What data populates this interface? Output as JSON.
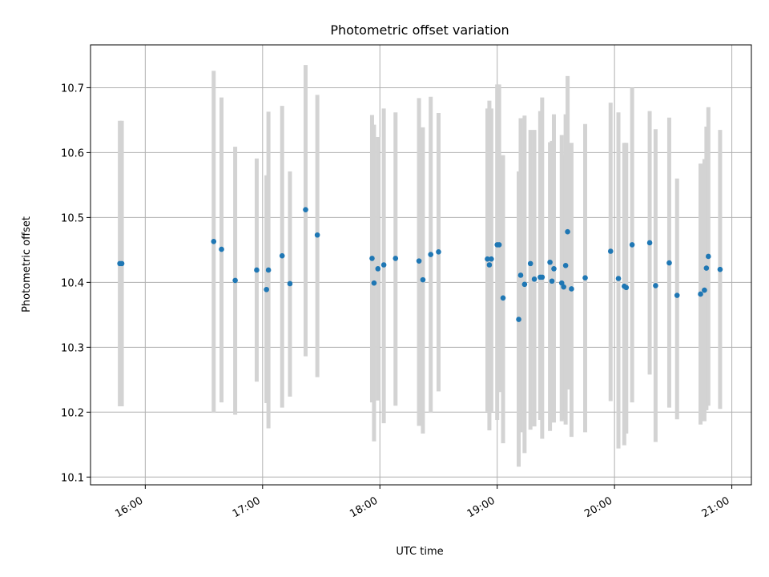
{
  "chart_data": {
    "type": "scatter",
    "title": "Photometric offset variation",
    "xlabel": "UTC time",
    "ylabel": "Photometric offset",
    "grid": true,
    "xlim": [
      "15:32",
      "21:10"
    ],
    "ylim": [
      10.088,
      10.766
    ],
    "x_ticks": [
      "16:00",
      "17:00",
      "18:00",
      "19:00",
      "20:00",
      "21:00"
    ],
    "y_ticks": [
      "10.1",
      "10.2",
      "10.3",
      "10.4",
      "10.5",
      "10.6",
      "10.7"
    ],
    "point_color": "#1f77b4",
    "errorbar_color": "#d3d3d3",
    "series": [
      {
        "x": [
          "15:47",
          "15:48",
          "16:35",
          "16:39",
          "16:46",
          "16:57",
          "17:02",
          "17:03",
          "17:10",
          "17:14",
          "17:22",
          "17:28",
          "17:56",
          "17:57",
          "17:59",
          "18:02",
          "18:08",
          "18:20",
          "18:22",
          "18:26",
          "18:30",
          "18:55",
          "18:56",
          "18:57",
          "19:00",
          "19:01",
          "19:03",
          "19:11",
          "19:12",
          "19:14",
          "19:17",
          "19:19",
          "19:22",
          "19:23",
          "19:27",
          "19:28",
          "19:29",
          "19:33",
          "19:34",
          "19:35",
          "19:36",
          "19:38",
          "19:45",
          "19:58",
          "20:02",
          "20:05",
          "20:06",
          "20:09",
          "20:18",
          "20:21",
          "20:28",
          "20:32",
          "20:44",
          "20:46",
          "20:47",
          "20:48",
          "20:54"
        ],
        "y": [
          10.429,
          10.429,
          10.463,
          10.451,
          10.403,
          10.419,
          10.389,
          10.419,
          10.441,
          10.398,
          10.512,
          10.473,
          10.437,
          10.399,
          10.421,
          10.427,
          10.437,
          10.433,
          10.404,
          10.443,
          10.447,
          10.436,
          10.427,
          10.436,
          10.458,
          10.458,
          10.376,
          10.343,
          10.411,
          10.397,
          10.429,
          10.405,
          10.408,
          10.408,
          10.431,
          10.402,
          10.421,
          10.399,
          10.393,
          10.426,
          10.478,
          10.39,
          10.407,
          10.448,
          10.406,
          10.394,
          10.392,
          10.458,
          10.461,
          10.395,
          10.43,
          10.38,
          10.382,
          10.388,
          10.422,
          10.44,
          10.42
        ],
        "err_low": [
          10.209,
          10.209,
          10.199,
          10.215,
          10.196,
          10.247,
          10.214,
          10.175,
          10.207,
          10.224,
          10.286,
          10.254,
          10.215,
          10.155,
          10.218,
          10.183,
          10.21,
          10.179,
          10.167,
          10.199,
          10.232,
          10.201,
          10.172,
          10.201,
          10.188,
          10.231,
          10.152,
          10.116,
          10.169,
          10.137,
          10.173,
          10.178,
          10.188,
          10.159,
          10.171,
          10.201,
          10.184,
          10.186,
          10.189,
          10.181,
          10.235,
          10.162,
          10.169,
          10.217,
          10.144,
          10.149,
          10.167,
          10.215,
          10.258,
          10.154,
          10.207,
          10.189,
          10.181,
          10.186,
          10.203,
          10.21,
          10.205
        ],
        "err_high": [
          10.649,
          10.649,
          10.726,
          10.685,
          10.609,
          10.591,
          10.565,
          10.663,
          10.672,
          10.571,
          10.735,
          10.689,
          10.658,
          10.643,
          10.624,
          10.668,
          10.662,
          10.684,
          10.639,
          10.686,
          10.661,
          10.668,
          10.68,
          10.668,
          10.705,
          10.705,
          10.596,
          10.571,
          10.653,
          10.657,
          10.635,
          10.635,
          10.664,
          10.685,
          10.616,
          10.618,
          10.659,
          10.627,
          10.596,
          10.659,
          10.718,
          10.615,
          10.644,
          10.677,
          10.662,
          10.615,
          10.615,
          10.7,
          10.664,
          10.636,
          10.654,
          10.56,
          10.583,
          10.59,
          10.64,
          10.67,
          10.635
        ]
      }
    ]
  }
}
